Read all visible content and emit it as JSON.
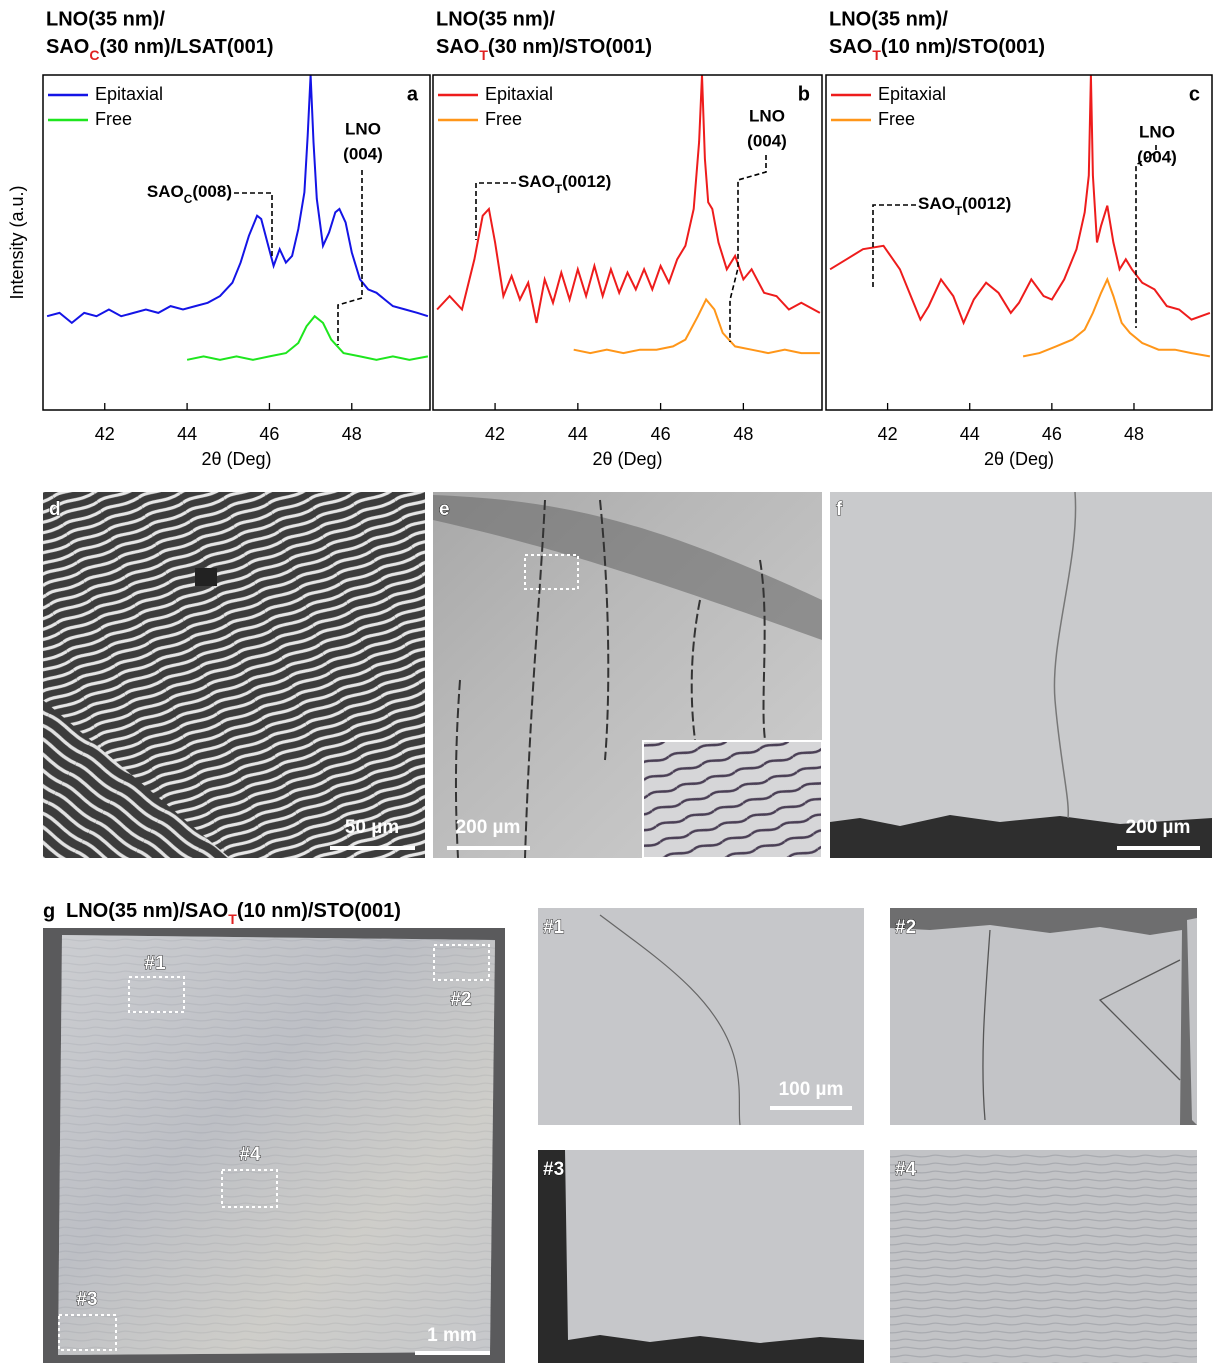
{
  "chart_data": [
    {
      "type": "line",
      "panel_label": "a",
      "title": "LNO(35 nm)/",
      "subtitle": {
        "base": "SAO",
        "sub": "C",
        "rest": "(30 nm)/LSAT(001)",
        "sub_color": "#e02020"
      },
      "x_label": "2θ (Deg)",
      "y_label": "Intensity (a.u.)",
      "legend": "upper left",
      "xlim": [
        40.5,
        49.9
      ],
      "xticks": [
        42,
        44,
        46,
        48
      ],
      "ylim": [
        0,
        10
      ],
      "series": [
        {
          "name": "Epitaxial",
          "color": "#1414e6",
          "x": [
            40.6,
            40.9,
            41.2,
            41.5,
            41.8,
            42.1,
            42.4,
            42.7,
            43.0,
            43.3,
            43.6,
            43.9,
            44.2,
            44.5,
            44.8,
            45.1,
            45.3,
            45.5,
            45.7,
            45.8,
            45.95,
            46.1,
            46.25,
            46.4,
            46.55,
            46.7,
            46.85,
            46.93,
            47.0,
            47.07,
            47.15,
            47.3,
            47.45,
            47.6,
            47.7,
            47.85,
            48.0,
            48.2,
            48.4,
            48.6,
            48.8,
            49.0,
            49.3,
            49.6,
            49.85
          ],
          "values": [
            2.8,
            2.9,
            2.6,
            2.9,
            2.8,
            3.0,
            2.8,
            2.9,
            3.0,
            2.9,
            3.1,
            3.0,
            3.1,
            3.2,
            3.4,
            3.8,
            4.4,
            5.2,
            5.8,
            5.7,
            5.0,
            4.3,
            4.8,
            4.4,
            4.6,
            5.4,
            6.5,
            8.2,
            10.0,
            8.0,
            6.3,
            4.9,
            5.3,
            5.9,
            6.0,
            5.6,
            4.7,
            3.9,
            3.6,
            3.5,
            3.3,
            3.1,
            3.0,
            2.9,
            2.8
          ]
        },
        {
          "name": "Free",
          "color": "#1ee61e",
          "x": [
            44.0,
            44.4,
            44.8,
            45.2,
            45.6,
            46.0,
            46.4,
            46.7,
            46.9,
            47.1,
            47.3,
            47.5,
            47.8,
            48.2,
            48.6,
            49.0,
            49.4,
            49.85
          ],
          "values": [
            1.5,
            1.6,
            1.5,
            1.6,
            1.5,
            1.6,
            1.7,
            2.0,
            2.5,
            2.8,
            2.6,
            2.1,
            1.7,
            1.6,
            1.5,
            1.6,
            1.5,
            1.6
          ]
        }
      ],
      "annotations": [
        {
          "base": "SAO",
          "sub": "C",
          "rest": "(008)"
        },
        {
          "lines": [
            "LNO",
            "(004)"
          ]
        }
      ]
    },
    {
      "type": "line",
      "panel_label": "b",
      "title": "LNO(35 nm)/",
      "subtitle": {
        "base": "SAO",
        "sub": "T",
        "rest": "(30 nm)/STO(001)",
        "sub_color": "#e02020"
      },
      "x_label": "2θ (Deg)",
      "legend": "upper left",
      "xlim": [
        40.5,
        49.9
      ],
      "xticks": [
        42,
        44,
        46,
        48
      ],
      "ylim": [
        0,
        10
      ],
      "series": [
        {
          "name": "Epitaxial",
          "color": "#ee1c1c",
          "x": [
            40.6,
            40.9,
            41.2,
            41.5,
            41.7,
            41.85,
            42.0,
            42.2,
            42.4,
            42.6,
            42.8,
            43.0,
            43.2,
            43.4,
            43.6,
            43.8,
            44.0,
            44.2,
            44.4,
            44.6,
            44.8,
            45.0,
            45.2,
            45.4,
            45.6,
            45.8,
            46.0,
            46.2,
            46.4,
            46.6,
            46.8,
            46.93,
            47.0,
            47.07,
            47.15,
            47.25,
            47.4,
            47.6,
            47.8,
            48.0,
            48.2,
            48.5,
            48.8,
            49.1,
            49.4,
            49.85
          ],
          "values": [
            3.0,
            3.4,
            3.0,
            4.5,
            5.8,
            6.0,
            5.0,
            3.4,
            4.0,
            3.3,
            3.8,
            2.6,
            3.9,
            3.2,
            4.1,
            3.3,
            4.2,
            3.4,
            4.3,
            3.4,
            4.2,
            3.5,
            4.1,
            3.6,
            4.2,
            3.6,
            4.3,
            3.8,
            4.5,
            4.9,
            6.0,
            8.0,
            10.0,
            7.5,
            6.2,
            6.0,
            5.0,
            4.2,
            4.6,
            3.9,
            4.2,
            3.5,
            3.4,
            3.0,
            3.2,
            2.9
          ]
        },
        {
          "name": "Free",
          "color": "#ff9619",
          "x": [
            43.9,
            44.3,
            44.7,
            45.1,
            45.5,
            45.9,
            46.3,
            46.6,
            46.9,
            47.1,
            47.3,
            47.5,
            47.8,
            48.2,
            48.6,
            49.0,
            49.4,
            49.85
          ],
          "values": [
            1.8,
            1.7,
            1.8,
            1.7,
            1.8,
            1.8,
            1.9,
            2.1,
            2.8,
            3.3,
            3.0,
            2.3,
            1.9,
            1.8,
            1.7,
            1.8,
            1.7,
            1.7
          ]
        }
      ],
      "annotations": [
        {
          "base": "SAO",
          "sub": "T",
          "rest": "(0012)"
        },
        {
          "lines": [
            "LNO",
            "(004)"
          ]
        }
      ]
    },
    {
      "type": "line",
      "panel_label": "c",
      "title": "LNO(35 nm)/",
      "subtitle": {
        "base": "SAO",
        "sub": "T",
        "rest": "(10 nm)/STO(001)",
        "sub_color": "#e02020"
      },
      "x_label": "2θ (Deg)",
      "legend": "upper left",
      "xlim": [
        40.5,
        49.9
      ],
      "xticks": [
        42,
        44,
        46,
        48
      ],
      "ylim": [
        0,
        10
      ],
      "series": [
        {
          "name": "Epitaxial",
          "color": "#ee1c1c",
          "x": [
            40.6,
            41.0,
            41.4,
            41.9,
            42.3,
            42.6,
            42.8,
            43.0,
            43.3,
            43.6,
            43.85,
            44.1,
            44.4,
            44.7,
            45.0,
            45.2,
            45.5,
            45.8,
            46.0,
            46.3,
            46.6,
            46.8,
            46.9,
            46.95,
            47.0,
            47.1,
            47.2,
            47.35,
            47.5,
            47.65,
            47.8,
            47.95,
            48.2,
            48.5,
            48.8,
            49.1,
            49.4,
            49.85
          ],
          "values": [
            4.2,
            4.5,
            4.8,
            4.9,
            4.2,
            3.3,
            2.7,
            3.1,
            3.9,
            3.4,
            2.6,
            3.3,
            3.8,
            3.5,
            2.9,
            3.2,
            3.9,
            3.4,
            3.3,
            3.9,
            4.8,
            5.9,
            7.0,
            10.0,
            7.0,
            5.0,
            5.5,
            6.1,
            5.0,
            4.2,
            4.5,
            4.2,
            3.8,
            3.6,
            3.1,
            3.0,
            2.7,
            2.9
          ]
        },
        {
          "name": "Free",
          "color": "#ff9619",
          "x": [
            45.3,
            45.7,
            46.1,
            46.5,
            46.8,
            47.0,
            47.2,
            47.35,
            47.5,
            47.7,
            47.9,
            48.2,
            48.6,
            49.0,
            49.4,
            49.85
          ],
          "values": [
            1.6,
            1.7,
            1.9,
            2.1,
            2.4,
            2.9,
            3.5,
            3.9,
            3.4,
            2.6,
            2.3,
            2.0,
            1.8,
            1.8,
            1.7,
            1.6
          ]
        }
      ],
      "annotations": [
        {
          "base": "SAO",
          "sub": "T",
          "rest": "(0012)"
        },
        {
          "lines": [
            "LNO",
            "(004)"
          ]
        }
      ]
    }
  ],
  "micrographs": [
    {
      "label": "d",
      "scale_bar": "50 µm"
    },
    {
      "label": "e",
      "scale_bar": "200 µm"
    },
    {
      "label": "f",
      "scale_bar": "200 µm"
    }
  ],
  "panel_g": {
    "label": "g",
    "title": {
      "pre": "LNO(35 nm)/SAO",
      "sub": "T",
      "rest": "(10 nm)/STO(001)",
      "sub_color": "#e02020"
    },
    "scale_bar": "1 mm",
    "regions": [
      "#1",
      "#2",
      "#3",
      "#4"
    ],
    "zoom_scale_bar": "100 µm"
  }
}
